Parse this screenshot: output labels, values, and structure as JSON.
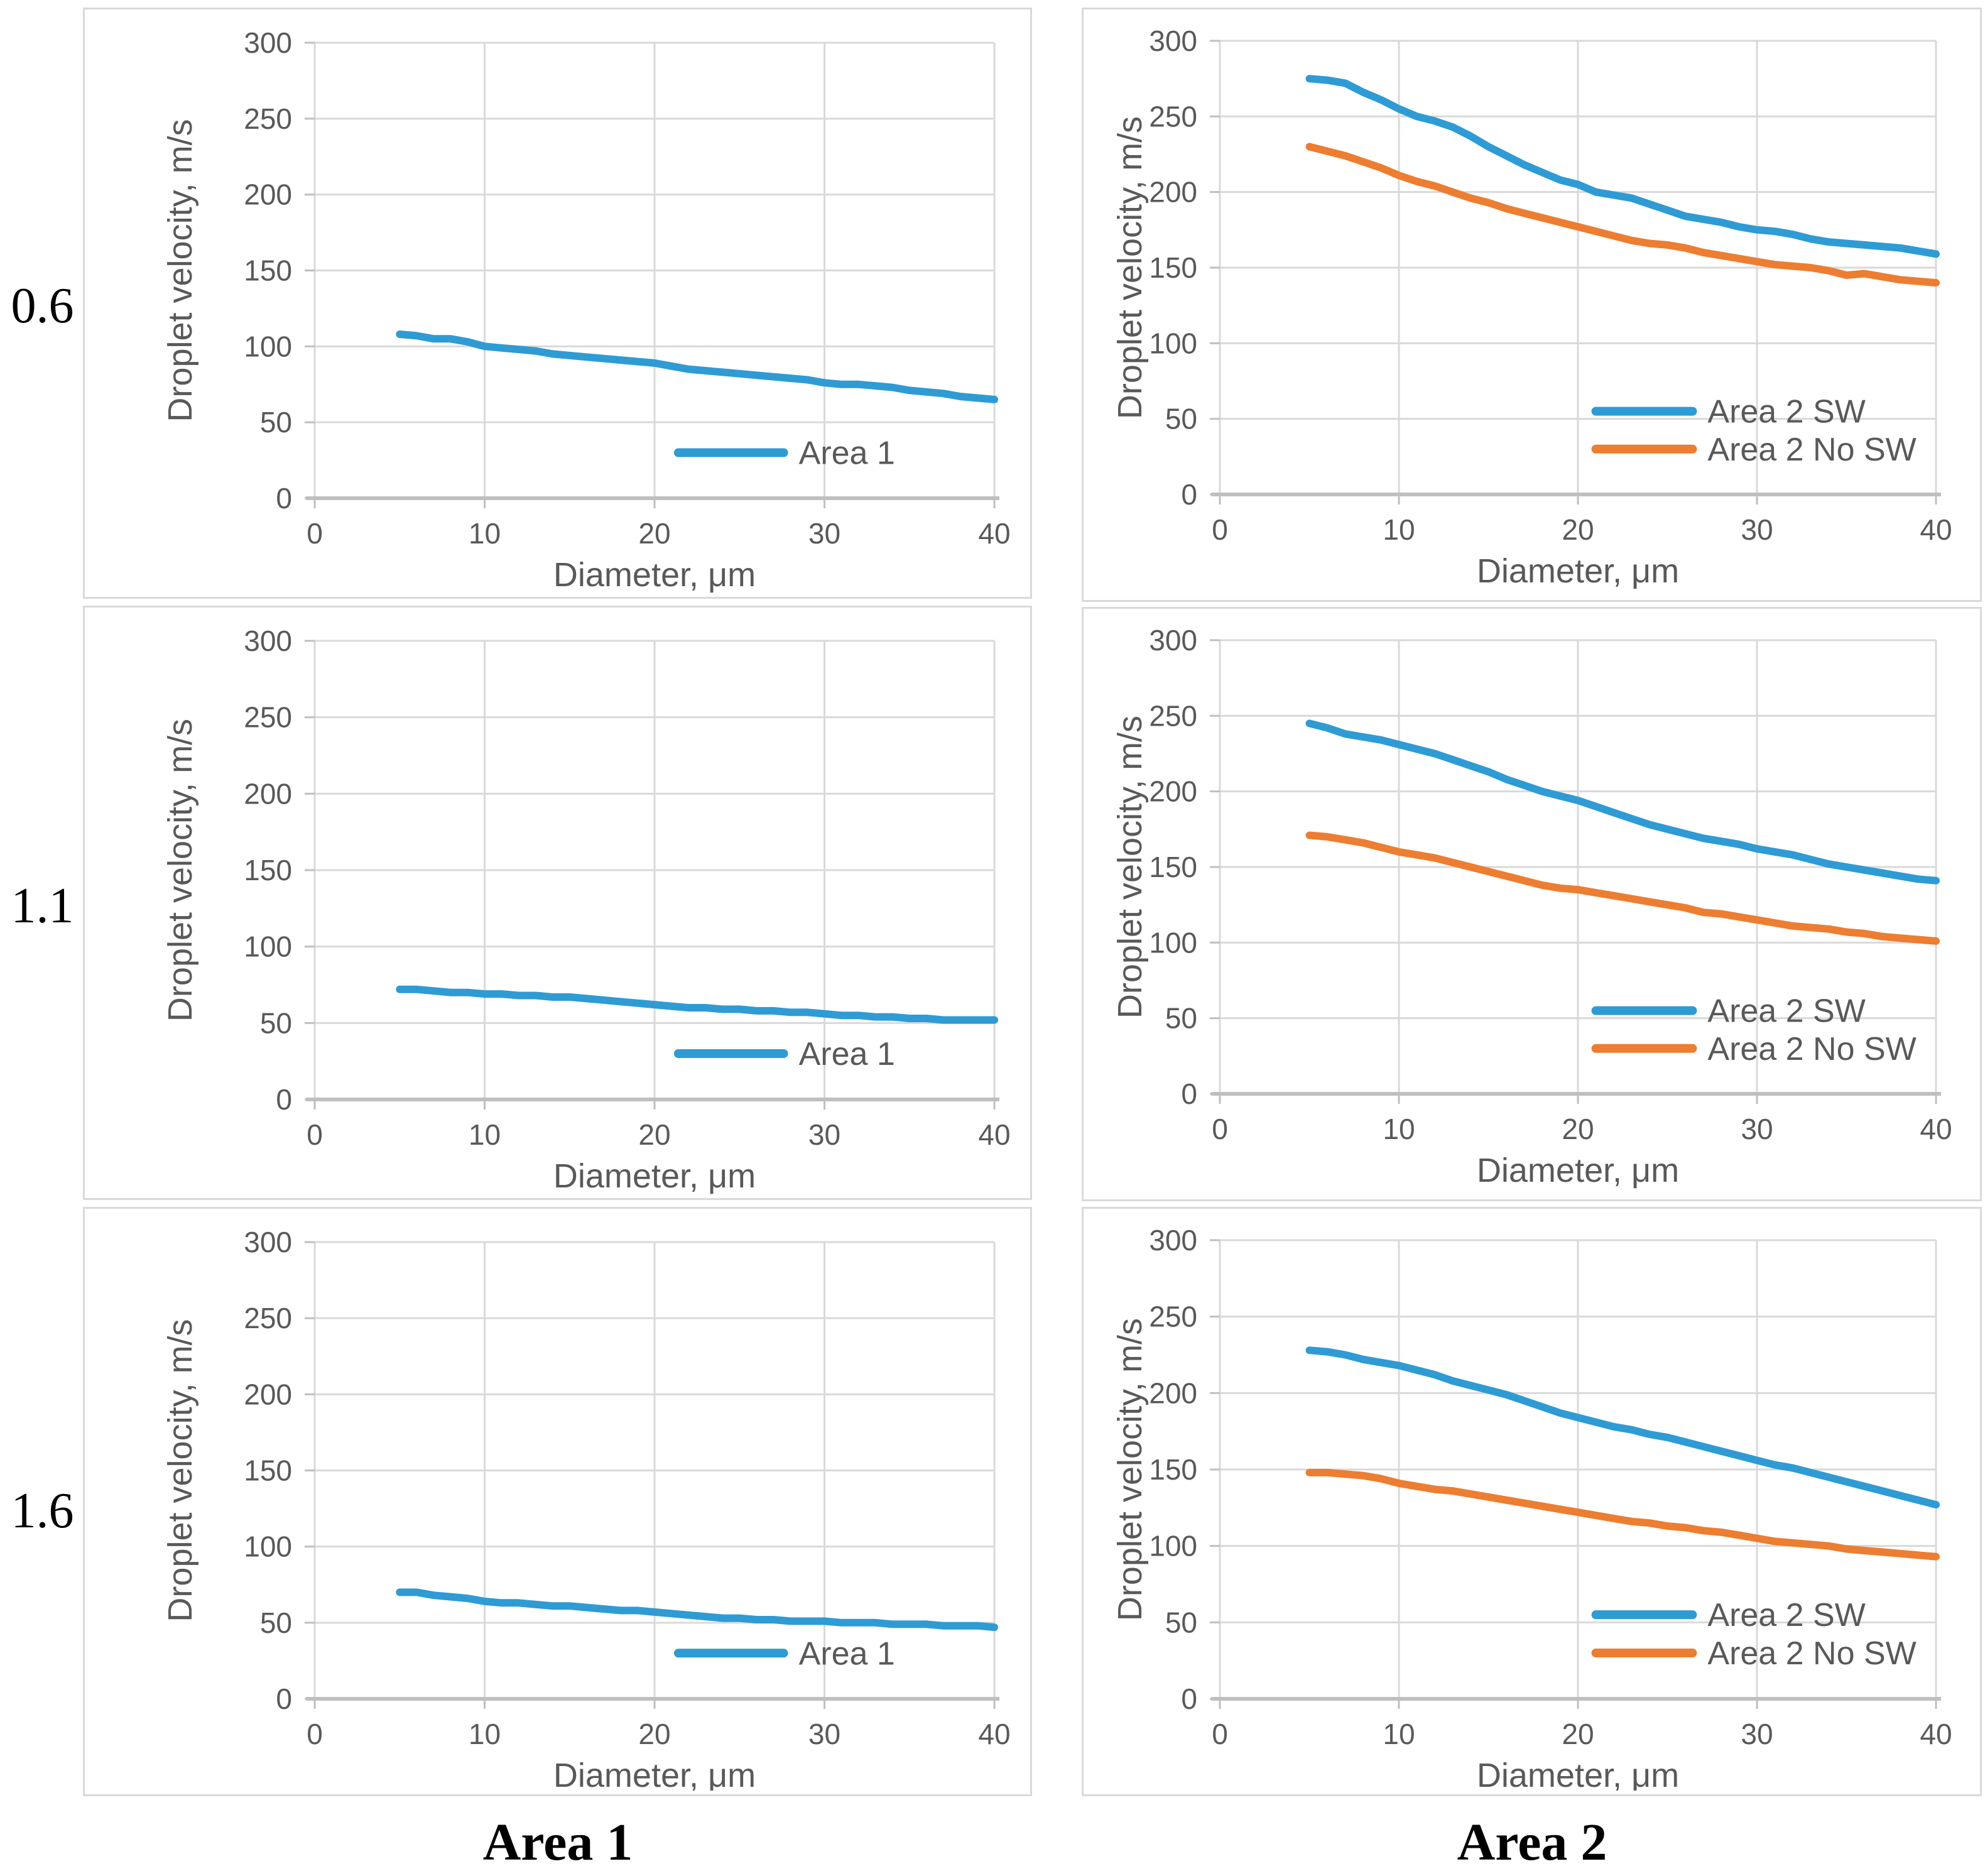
{
  "row_labels": [
    "0.6",
    "1.1",
    "1.6"
  ],
  "column_captions": [
    "Area 1",
    "Area 2"
  ],
  "colors": {
    "series_blue": "#2E9BD5",
    "series_orange": "#ED7D31",
    "gridline": "#D9D9D9",
    "axis_line": "#BFBFBF",
    "chart_text": "#595959",
    "label_text": "#000000"
  },
  "chart_data": [
    {
      "type": "line",
      "row_label": "0.6",
      "column": "Area 1",
      "title": "",
      "xlabel": "Diameter, μm",
      "ylabel": "Droplet velocity, m/s",
      "x_ticks": [
        0,
        10,
        20,
        30,
        40
      ],
      "y_ticks": [
        0,
        50,
        100,
        150,
        200,
        250,
        300
      ],
      "xlim": [
        0,
        40
      ],
      "ylim": [
        0,
        300
      ],
      "grid": true,
      "legend_position": "inside-lower-right",
      "legend_labels": [
        "Area 1"
      ],
      "x": [
        5,
        6,
        7,
        8,
        9,
        10,
        11,
        12,
        13,
        14,
        15,
        16,
        17,
        18,
        19,
        20,
        21,
        22,
        23,
        24,
        25,
        26,
        27,
        28,
        29,
        30,
        31,
        32,
        33,
        34,
        35,
        36,
        37,
        38,
        39,
        40
      ],
      "series": [
        {
          "name": "Area 1",
          "color_key": "series_blue",
          "values": [
            108,
            107,
            105,
            105,
            103,
            100,
            99,
            98,
            97,
            95,
            94,
            93,
            92,
            91,
            90,
            89,
            87,
            85,
            84,
            83,
            82,
            81,
            80,
            79,
            78,
            76,
            75,
            75,
            74,
            73,
            71,
            70,
            69,
            67,
            66,
            65
          ]
        }
      ]
    },
    {
      "type": "line",
      "row_label": "0.6",
      "column": "Area 2",
      "title": "",
      "xlabel": "Diameter, μm",
      "ylabel": "Droplet velocity, m/s",
      "x_ticks": [
        0,
        10,
        20,
        30,
        40
      ],
      "y_ticks": [
        0,
        50,
        100,
        150,
        200,
        250,
        300
      ],
      "xlim": [
        0,
        40
      ],
      "ylim": [
        0,
        300
      ],
      "grid": true,
      "legend_position": "inside-lower-right",
      "legend_labels": [
        "Area 2 SW",
        "Area 2 No SW"
      ],
      "x": [
        5,
        6,
        7,
        8,
        9,
        10,
        11,
        12,
        13,
        14,
        15,
        16,
        17,
        18,
        19,
        20,
        21,
        22,
        23,
        24,
        25,
        26,
        27,
        28,
        29,
        30,
        31,
        32,
        33,
        34,
        35,
        36,
        37,
        38,
        39,
        40
      ],
      "series": [
        {
          "name": "Area 2 SW",
          "color_key": "series_blue",
          "values": [
            275,
            274,
            272,
            266,
            261,
            255,
            250,
            247,
            243,
            237,
            230,
            224,
            218,
            213,
            208,
            205,
            200,
            198,
            196,
            192,
            188,
            184,
            182,
            180,
            177,
            175,
            174,
            172,
            169,
            167,
            166,
            165,
            164,
            163,
            161,
            159
          ]
        },
        {
          "name": "Area 2 No SW",
          "color_key": "series_orange",
          "values": [
            230,
            227,
            224,
            220,
            216,
            211,
            207,
            204,
            200,
            196,
            193,
            189,
            186,
            183,
            180,
            177,
            174,
            171,
            168,
            166,
            165,
            163,
            160,
            158,
            156,
            154,
            152,
            151,
            150,
            148,
            145,
            146,
            144,
            142,
            141,
            140
          ]
        }
      ]
    },
    {
      "type": "line",
      "row_label": "1.1",
      "column": "Area 1",
      "title": "",
      "xlabel": "Diameter, μm",
      "ylabel": "Droplet velocity, m/s",
      "x_ticks": [
        0,
        10,
        20,
        30,
        40
      ],
      "y_ticks": [
        0,
        50,
        100,
        150,
        200,
        250,
        300
      ],
      "xlim": [
        0,
        40
      ],
      "ylim": [
        0,
        300
      ],
      "grid": true,
      "legend_position": "inside-lower-right",
      "legend_labels": [
        "Area 1"
      ],
      "x": [
        5,
        6,
        7,
        8,
        9,
        10,
        11,
        12,
        13,
        14,
        15,
        16,
        17,
        18,
        19,
        20,
        21,
        22,
        23,
        24,
        25,
        26,
        27,
        28,
        29,
        30,
        31,
        32,
        33,
        34,
        35,
        36,
        37,
        38,
        39,
        40
      ],
      "series": [
        {
          "name": "Area 1",
          "color_key": "series_blue",
          "values": [
            72,
            72,
            71,
            70,
            70,
            69,
            69,
            68,
            68,
            67,
            67,
            66,
            65,
            64,
            63,
            62,
            61,
            60,
            60,
            59,
            59,
            58,
            58,
            57,
            57,
            56,
            55,
            55,
            54,
            54,
            53,
            53,
            52,
            52,
            52,
            52
          ]
        }
      ]
    },
    {
      "type": "line",
      "row_label": "1.1",
      "column": "Area 2",
      "title": "",
      "xlabel": "Diameter, μm",
      "ylabel": "Droplet velocity, m/s",
      "x_ticks": [
        0,
        10,
        20,
        30,
        40
      ],
      "y_ticks": [
        0,
        50,
        100,
        150,
        200,
        250,
        300
      ],
      "xlim": [
        0,
        40
      ],
      "ylim": [
        0,
        300
      ],
      "grid": true,
      "legend_position": "inside-lower-right",
      "legend_labels": [
        "Area 2 SW",
        "Area 2 No SW"
      ],
      "x": [
        5,
        6,
        7,
        8,
        9,
        10,
        11,
        12,
        13,
        14,
        15,
        16,
        17,
        18,
        19,
        20,
        21,
        22,
        23,
        24,
        25,
        26,
        27,
        28,
        29,
        30,
        31,
        32,
        33,
        34,
        35,
        36,
        37,
        38,
        39,
        40
      ],
      "series": [
        {
          "name": "Area 2 SW",
          "color_key": "series_blue",
          "values": [
            245,
            242,
            238,
            236,
            234,
            231,
            228,
            225,
            221,
            217,
            213,
            208,
            204,
            200,
            197,
            194,
            190,
            186,
            182,
            178,
            175,
            172,
            169,
            167,
            165,
            162,
            160,
            158,
            155,
            152,
            150,
            148,
            146,
            144,
            142,
            141
          ]
        },
        {
          "name": "Area 2 No SW",
          "color_key": "series_orange",
          "values": [
            171,
            170,
            168,
            166,
            163,
            160,
            158,
            156,
            153,
            150,
            147,
            144,
            141,
            138,
            136,
            135,
            133,
            131,
            129,
            127,
            125,
            123,
            120,
            119,
            117,
            115,
            113,
            111,
            110,
            109,
            107,
            106,
            104,
            103,
            102,
            101
          ]
        }
      ]
    },
    {
      "type": "line",
      "row_label": "1.6",
      "column": "Area 1",
      "title": "",
      "xlabel": "Diameter, μm",
      "ylabel": "Droplet velocity, m/s",
      "x_ticks": [
        0,
        10,
        20,
        30,
        40
      ],
      "y_ticks": [
        0,
        50,
        100,
        150,
        200,
        250,
        300
      ],
      "xlim": [
        0,
        40
      ],
      "ylim": [
        0,
        300
      ],
      "grid": true,
      "legend_position": "inside-lower-right",
      "legend_labels": [
        "Area 1"
      ],
      "x": [
        5,
        6,
        7,
        8,
        9,
        10,
        11,
        12,
        13,
        14,
        15,
        16,
        17,
        18,
        19,
        20,
        21,
        22,
        23,
        24,
        25,
        26,
        27,
        28,
        29,
        30,
        31,
        32,
        33,
        34,
        35,
        36,
        37,
        38,
        39,
        40
      ],
      "series": [
        {
          "name": "Area 1",
          "color_key": "series_blue",
          "values": [
            70,
            70,
            68,
            67,
            66,
            64,
            63,
            63,
            62,
            61,
            61,
            60,
            59,
            58,
            58,
            57,
            56,
            55,
            54,
            53,
            53,
            52,
            52,
            51,
            51,
            51,
            50,
            50,
            50,
            49,
            49,
            49,
            48,
            48,
            48,
            47
          ]
        }
      ]
    },
    {
      "type": "line",
      "row_label": "1.6",
      "column": "Area 2",
      "title": "",
      "xlabel": "Diameter, μm",
      "ylabel": "Droplet velocity, m/s",
      "x_ticks": [
        0,
        10,
        20,
        30,
        40
      ],
      "y_ticks": [
        0,
        50,
        100,
        150,
        200,
        250,
        300
      ],
      "xlim": [
        0,
        40
      ],
      "ylim": [
        0,
        300
      ],
      "grid": true,
      "legend_position": "inside-lower-right",
      "legend_labels": [
        "Area 2 SW",
        "Area 2 No SW"
      ],
      "x": [
        5,
        6,
        7,
        8,
        9,
        10,
        11,
        12,
        13,
        14,
        15,
        16,
        17,
        18,
        19,
        20,
        21,
        22,
        23,
        24,
        25,
        26,
        27,
        28,
        29,
        30,
        31,
        32,
        33,
        34,
        35,
        36,
        37,
        38,
        39,
        40
      ],
      "series": [
        {
          "name": "Area 2 SW",
          "color_key": "series_blue",
          "values": [
            228,
            227,
            225,
            222,
            220,
            218,
            215,
            212,
            208,
            205,
            202,
            199,
            195,
            191,
            187,
            184,
            181,
            178,
            176,
            173,
            171,
            168,
            165,
            162,
            159,
            156,
            153,
            151,
            148,
            145,
            142,
            139,
            136,
            133,
            130,
            127
          ]
        },
        {
          "name": "Area 2 No SW",
          "color_key": "series_orange",
          "values": [
            148,
            148,
            147,
            146,
            144,
            141,
            139,
            137,
            136,
            134,
            132,
            130,
            128,
            126,
            124,
            122,
            120,
            118,
            116,
            115,
            113,
            112,
            110,
            109,
            107,
            105,
            103,
            102,
            101,
            100,
            98,
            97,
            96,
            95,
            94,
            93
          ]
        }
      ]
    }
  ]
}
